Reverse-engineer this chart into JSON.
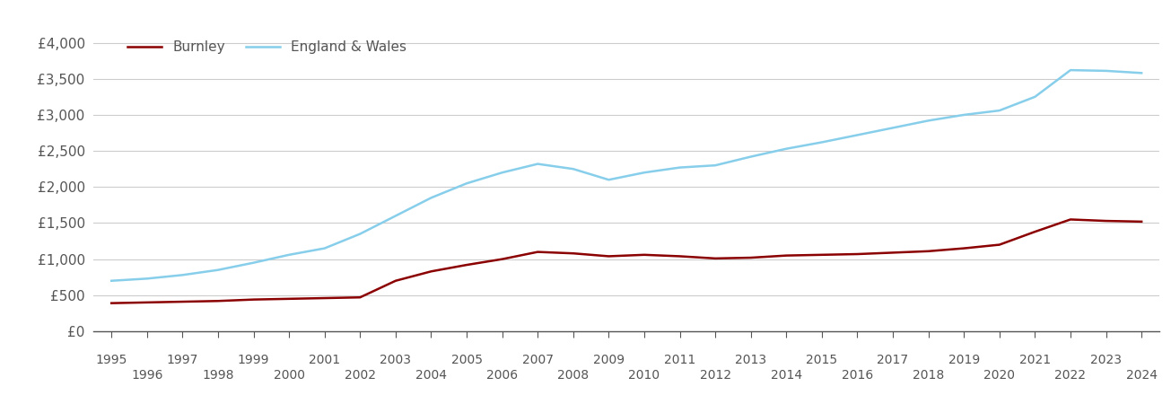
{
  "years": [
    1995,
    1996,
    1997,
    1998,
    1999,
    2000,
    2001,
    2002,
    2003,
    2004,
    2005,
    2006,
    2007,
    2008,
    2009,
    2010,
    2011,
    2012,
    2013,
    2014,
    2015,
    2016,
    2017,
    2018,
    2019,
    2020,
    2021,
    2022,
    2023,
    2024
  ],
  "burnley": [
    390,
    400,
    410,
    420,
    440,
    450,
    460,
    470,
    700,
    830,
    920,
    1000,
    1100,
    1080,
    1040,
    1060,
    1040,
    1010,
    1020,
    1050,
    1060,
    1070,
    1090,
    1110,
    1150,
    1200,
    1380,
    1550,
    1530,
    1520
  ],
  "england_wales": [
    700,
    730,
    780,
    850,
    950,
    1060,
    1150,
    1350,
    1600,
    1850,
    2050,
    2200,
    2320,
    2250,
    2100,
    2200,
    2270,
    2300,
    2420,
    2530,
    2620,
    2720,
    2820,
    2920,
    3000,
    3060,
    3250,
    3620,
    3610,
    3580
  ],
  "burnley_color": "#8B0000",
  "ew_color": "#87CEEB",
  "background_color": "#ffffff",
  "grid_color": "#cccccc",
  "ylim": [
    0,
    4200
  ],
  "yticks": [
    0,
    500,
    1000,
    1500,
    2000,
    2500,
    3000,
    3500,
    4000
  ],
  "ytick_labels": [
    "£0",
    "£500",
    "£1,000",
    "£1,500",
    "£2,000",
    "£2,500",
    "£3,000",
    "£3,500",
    "£4,000"
  ],
  "legend_burnley": "Burnley",
  "legend_ew": "England & Wales",
  "line_width": 1.8,
  "tick_color": "#555555",
  "tick_fontsize": 10
}
